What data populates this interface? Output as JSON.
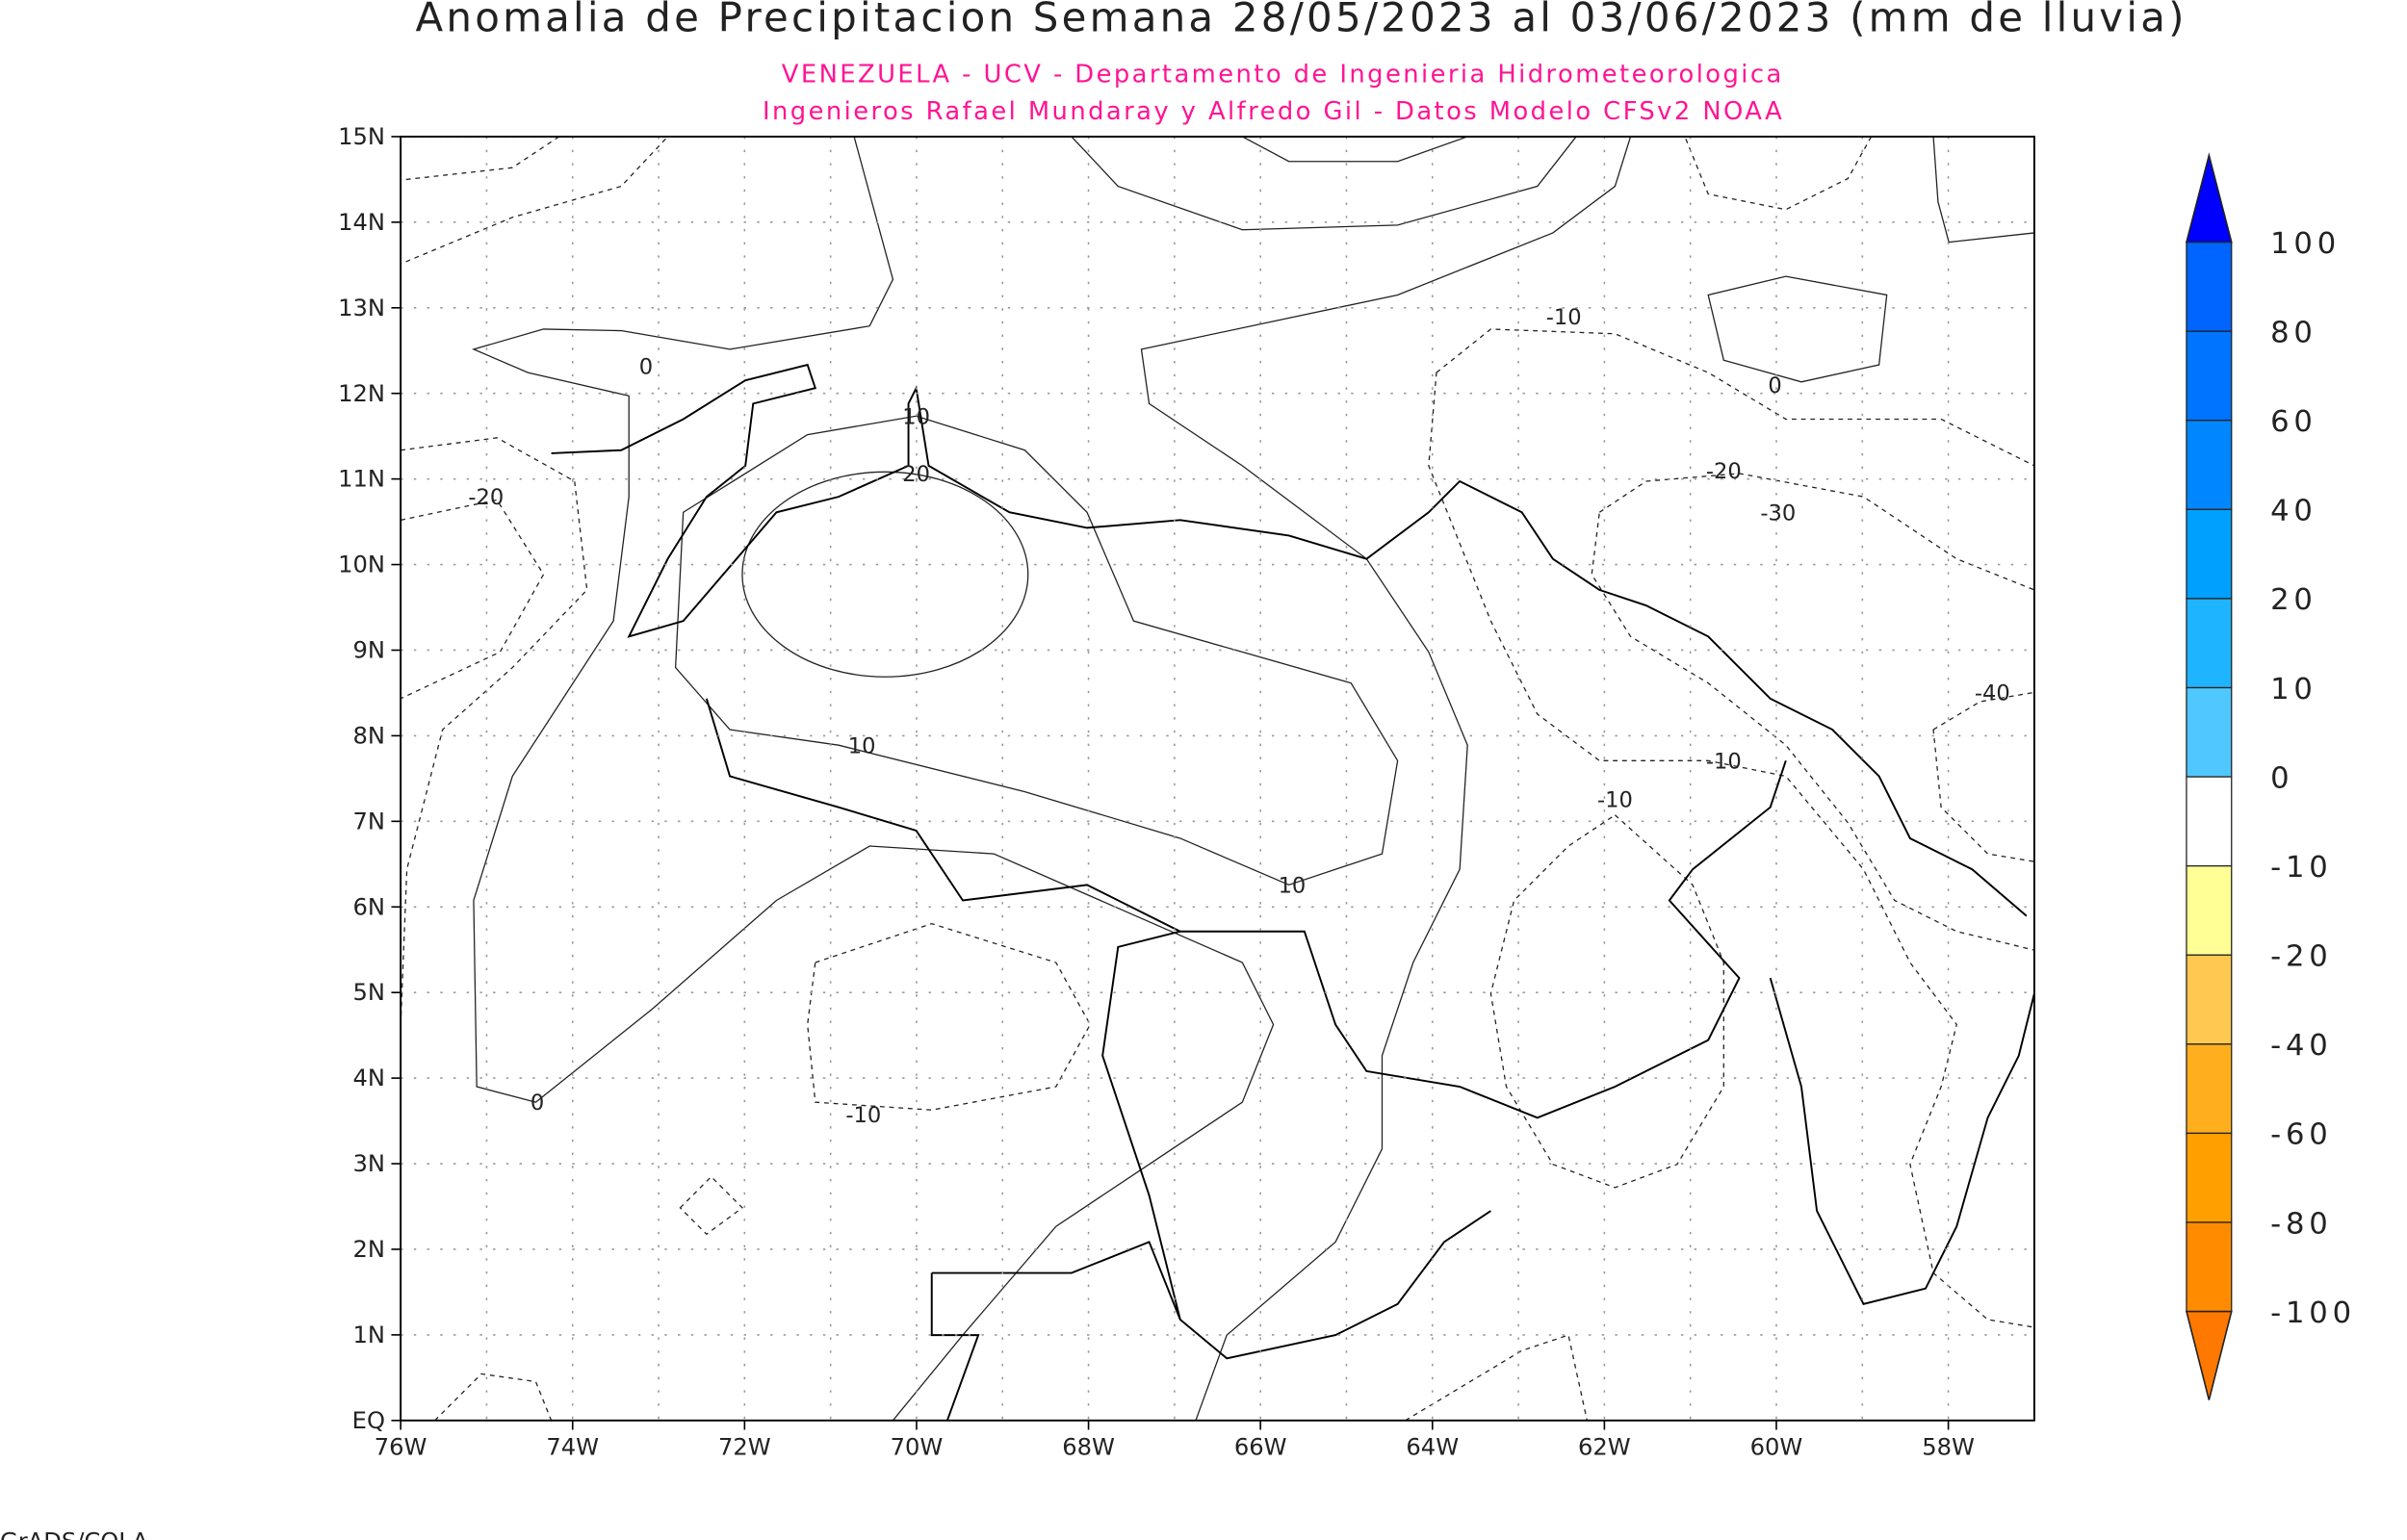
{
  "title": "Anomalia de Precipitacion Semana 28/05/2023 al 03/06/2023 (mm de lluvia)",
  "subtitle1": "VENEZUELA - UCV - Departamento de Ingenieria Hidrometeorologica",
  "subtitle2": "Ingenieros Rafael Mundaray y Alfredo Gil - Datos Modelo CFSv2 NOAA",
  "footer": "GrADS/COLA",
  "map": {
    "lon_range": [
      -76,
      -57
    ],
    "lat_range": [
      0,
      15
    ],
    "lat_labels": [
      "15N",
      "14N",
      "13N",
      "12N",
      "11N",
      "10N",
      "9N",
      "8N",
      "7N",
      "6N",
      "5N",
      "4N",
      "3N",
      "2N",
      "1N",
      "EQ"
    ],
    "lon_labels": [
      "76W",
      "74W",
      "72W",
      "70W",
      "68W",
      "66W",
      "64W",
      "62W",
      "60W",
      "58W"
    ],
    "contour_labels": [
      "0",
      "10",
      "20",
      "-20",
      "10",
      "10",
      "0",
      "-10",
      "-10",
      "0",
      "-20",
      "-30",
      "-40",
      "-10",
      "-10"
    ]
  },
  "colorbar": {
    "labels": [
      "100",
      "80",
      "60",
      "40",
      "20",
      "10",
      "0",
      "-10",
      "-20",
      "-40",
      "-60",
      "-80",
      "-100"
    ],
    "colors": [
      "#0000ff",
      "#0064ff",
      "#0073ff",
      "#0087ff",
      "#00a0ff",
      "#1eb4ff",
      "#50c8ff",
      "#ffffff",
      "#ffff96",
      "#ffc850",
      "#ffaf1e",
      "#ffa000",
      "#ff8c00",
      "#ff7800"
    ]
  }
}
